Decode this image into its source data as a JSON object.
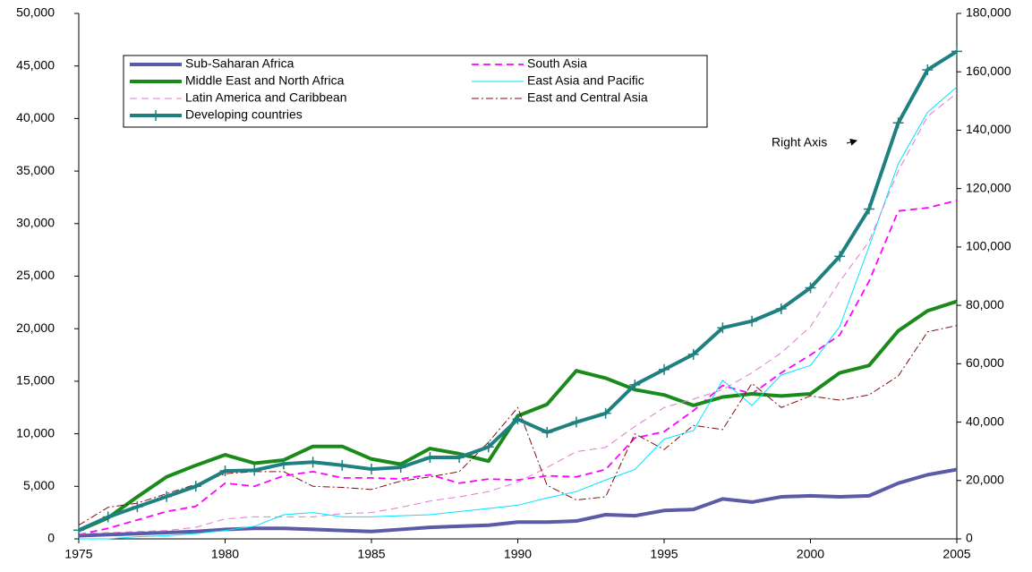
{
  "chart_data": {
    "type": "line",
    "x": [
      1975,
      1976,
      1977,
      1978,
      1979,
      1980,
      1981,
      1982,
      1983,
      1984,
      1985,
      1986,
      1987,
      1988,
      1989,
      1990,
      1991,
      1992,
      1993,
      1994,
      1995,
      1996,
      1997,
      1998,
      1999,
      2000,
      2001,
      2002,
      2003,
      2004,
      2005
    ],
    "xlim": [
      1975,
      2005
    ],
    "xticks": [
      1975,
      1980,
      1985,
      1990,
      1995,
      2000,
      2005
    ],
    "ylim": [
      0,
      50000
    ],
    "yticks": [
      0,
      {
        "value": 5000,
        "label": "5,000"
      },
      {
        "value": 10000,
        "label": "10,000"
      },
      {
        "value": 15000,
        "label": "15,000"
      },
      {
        "value": 20000,
        "label": "20,000"
      },
      {
        "value": 25000,
        "label": "25,000"
      },
      {
        "value": 30000,
        "label": "30,000"
      },
      {
        "value": 35000,
        "label": "35,000"
      },
      {
        "value": 40000,
        "label": "40,000"
      },
      {
        "value": 45000,
        "label": "45,000"
      },
      {
        "value": 50000,
        "label": "50,000"
      }
    ],
    "y2lim": [
      0,
      180000
    ],
    "y2ticks": [
      0,
      {
        "value": 20000,
        "label": "20,000"
      },
      {
        "value": 40000,
        "label": "40,000"
      },
      {
        "value": 60000,
        "label": "60,000"
      },
      {
        "value": 80000,
        "label": "80,000"
      },
      {
        "value": 100000,
        "label": "100,000"
      },
      {
        "value": 120000,
        "label": "120,000"
      },
      {
        "value": 140000,
        "label": "140,000"
      },
      {
        "value": 160000,
        "label": "160,000"
      },
      {
        "value": 180000,
        "label": "180,000"
      }
    ],
    "annotation": "Right Axis",
    "series": [
      {
        "name": "Sub-Saharan Africa",
        "color": "#5b5ba8",
        "dash": "solid",
        "weight": "heavy",
        "values": [
          300,
          400,
          500,
          600,
          700,
          900,
          1000,
          1000,
          900,
          800,
          700,
          900,
          1100,
          1200,
          1300,
          1600,
          1600,
          1700,
          2300,
          2200,
          2700,
          2800,
          3800,
          3500,
          4000,
          4100,
          4000,
          4100,
          5300,
          6100,
          6600
        ]
      },
      {
        "name": "South Asia",
        "color": "#ff00ff",
        "dash": "dashed",
        "weight": "medium",
        "values": [
          400,
          1000,
          1800,
          2600,
          3100,
          5300,
          5000,
          6000,
          6400,
          5800,
          5800,
          5700,
          6100,
          5300,
          5700,
          5600,
          6000,
          5900,
          6600,
          9600,
          10200,
          12200,
          14600,
          13800,
          15800,
          17500,
          19400,
          24500,
          31200,
          31500,
          32200
        ]
      },
      {
        "name": "Middle East and North Africa",
        "color": "#1a8a1a",
        "dash": "solid",
        "weight": "heavy",
        "values": [
          800,
          2000,
          4000,
          5900,
          7000,
          8000,
          7200,
          7500,
          8800,
          8800,
          7600,
          7100,
          8600,
          8100,
          7400,
          11700,
          12800,
          16000,
          15300,
          14200,
          13700,
          12700,
          13500,
          13800,
          13600,
          13800,
          15800,
          16500,
          19800,
          21700,
          22600
        ]
      },
      {
        "name": "East Asia and Pacific",
        "color": "#00e5ff",
        "dash": "solid",
        "weight": "light",
        "values": [
          0,
          0,
          200,
          300,
          500,
          800,
          1200,
          2300,
          2500,
          2100,
          2100,
          2200,
          2300,
          2600,
          2900,
          3200,
          3900,
          4500,
          5600,
          6600,
          9500,
          10300,
          15100,
          12700,
          15600,
          16500,
          20200,
          27800,
          35700,
          40600,
          43000
        ]
      },
      {
        "name": "Latin America and Caribbean",
        "color": "#e07ad0",
        "dash": "dashed",
        "weight": "light",
        "values": [
          500,
          600,
          700,
          800,
          1100,
          1900,
          2100,
          2100,
          2100,
          2400,
          2500,
          3000,
          3600,
          4000,
          4500,
          5400,
          6800,
          8300,
          8700,
          10700,
          12500,
          13300,
          14200,
          15800,
          17700,
          20200,
          24500,
          28300,
          35000,
          40200,
          42400
        ]
      },
      {
        "name": "East and Central Asia",
        "color": "#7a0f0f",
        "dash": "dashdot",
        "weight": "light",
        "values": [
          1300,
          3000,
          3400,
          4300,
          5200,
          6200,
          6400,
          6400,
          5000,
          4900,
          4700,
          5500,
          5900,
          6400,
          9200,
          12500,
          5100,
          3700,
          4000,
          10000,
          8500,
          10800,
          10400,
          14800,
          12500,
          13600,
          13200,
          13700,
          15500,
          19700,
          20300
        ]
      },
      {
        "name": "Developing countries",
        "color": "#1e8080",
        "dash": "solid",
        "weight": "heavy",
        "marker": "plus",
        "axis": "y2",
        "values": [
          3000,
          7500,
          11000,
          14500,
          18000,
          23300,
          23500,
          25700,
          26300,
          25200,
          23900,
          24500,
          27900,
          27900,
          31500,
          41000,
          36500,
          40000,
          43000,
          52800,
          58000,
          63200,
          72300,
          74600,
          78800,
          86000,
          96800,
          113000,
          142500,
          160700,
          167000
        ]
      }
    ]
  }
}
